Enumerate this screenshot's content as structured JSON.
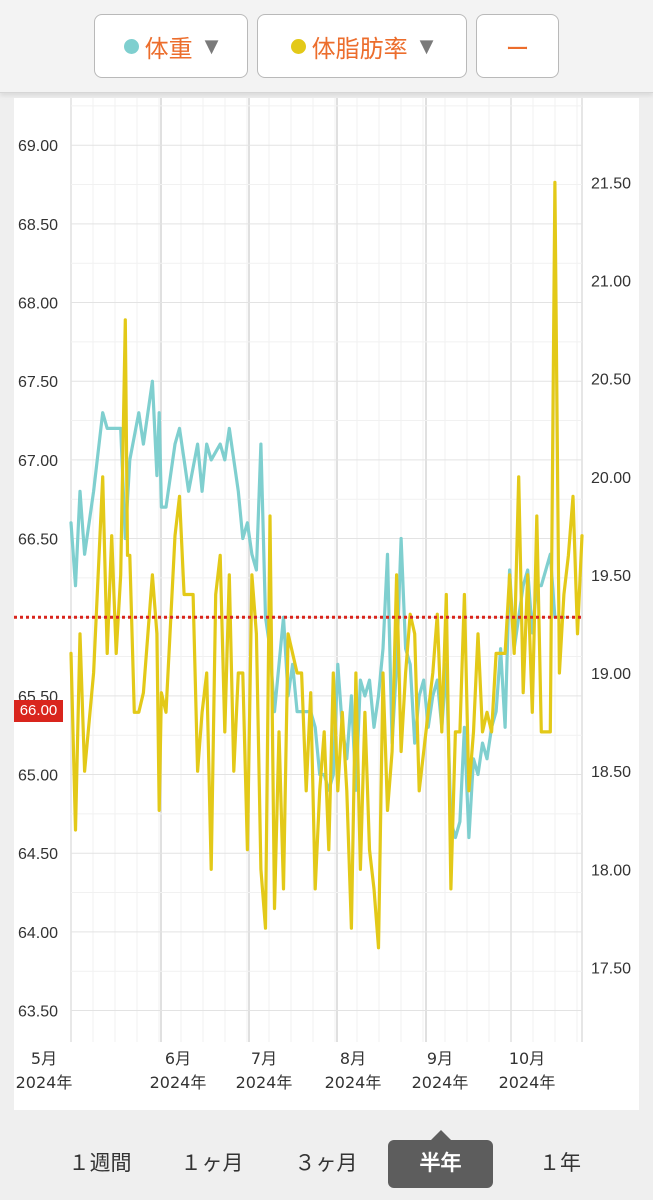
{
  "toolbar": {
    "series1_label": "体重",
    "series2_label": "体脂肪率",
    "series3_label": "ー",
    "dropdown_glyph": "▼"
  },
  "colors": {
    "weight": "#7fcfcf",
    "body_fat": "#e3c918",
    "reference_line": "#d9251d",
    "accent_text": "#ec6d2c"
  },
  "reference": {
    "label": "66.00",
    "value": 66.0
  },
  "periods": [
    "１週間",
    "１ヶ月",
    "３ヶ月",
    "半年",
    "１年"
  ],
  "active_period": "半年",
  "chart_data": {
    "type": "line",
    "x_axis": {
      "ticks": [
        {
          "line1": "5月",
          "line2": "2024年"
        },
        {
          "line1": "6月",
          "line2": "2024年"
        },
        {
          "line1": "7月",
          "line2": "2024年"
        },
        {
          "line1": "8月",
          "line2": "2024年"
        },
        {
          "line1": "9月",
          "line2": "2024年"
        },
        {
          "line1": "10月",
          "line2": "2024年"
        }
      ]
    },
    "y_left": {
      "range": [
        63.3,
        69.3
      ],
      "ticks": [
        "63.50",
        "64.00",
        "64.50",
        "65.00",
        "65.50",
        "66.00",
        "66.50",
        "67.00",
        "67.50",
        "68.00",
        "68.50",
        "69.00"
      ]
    },
    "y_right": {
      "range": [
        17.12,
        21.93
      ],
      "ticks": [
        "17.50",
        "18.00",
        "18.50",
        "19.00",
        "19.50",
        "20.00",
        "20.50",
        "21.00",
        "21.50"
      ]
    },
    "grid": true,
    "series": [
      {
        "name": "体重",
        "axis": "left",
        "points": [
          [
            0,
            66.6
          ],
          [
            1,
            66.2
          ],
          [
            2,
            66.8
          ],
          [
            3,
            66.4
          ],
          [
            5,
            66.8
          ],
          [
            7,
            67.3
          ],
          [
            8,
            67.2
          ],
          [
            9,
            67.2
          ],
          [
            10,
            67.2
          ],
          [
            11,
            67.2
          ],
          [
            12,
            66.5
          ],
          [
            13,
            67.0
          ],
          [
            15,
            67.3
          ],
          [
            16,
            67.1
          ],
          [
            18,
            67.5
          ],
          [
            19,
            66.9
          ],
          [
            19.5,
            67.3
          ],
          [
            20,
            66.7
          ],
          [
            21,
            66.7
          ],
          [
            23,
            67.1
          ],
          [
            24,
            67.2
          ],
          [
            25,
            67.0
          ],
          [
            26,
            66.8
          ],
          [
            28,
            67.1
          ],
          [
            29,
            66.8
          ],
          [
            30,
            67.1
          ],
          [
            31,
            67.0
          ],
          [
            33,
            67.1
          ],
          [
            34,
            67.0
          ],
          [
            35,
            67.2
          ],
          [
            37,
            66.8
          ],
          [
            38,
            66.5
          ],
          [
            39,
            66.6
          ],
          [
            40,
            66.4
          ],
          [
            41,
            66.3
          ],
          [
            42,
            67.1
          ],
          [
            43,
            66.0
          ],
          [
            44,
            65.8
          ],
          [
            45,
            65.4
          ],
          [
            46,
            65.7
          ],
          [
            47,
            66.0
          ],
          [
            48,
            65.5
          ],
          [
            49,
            65.7
          ],
          [
            50,
            65.4
          ],
          [
            51,
            65.4
          ],
          [
            52,
            65.4
          ],
          [
            53,
            65.4
          ],
          [
            54,
            65.3
          ],
          [
            55,
            65.0
          ],
          [
            56,
            65.0
          ],
          [
            57,
            64.9
          ],
          [
            58,
            65.0
          ],
          [
            59,
            65.7
          ],
          [
            60,
            65.3
          ],
          [
            61,
            65.1
          ],
          [
            62,
            65.5
          ],
          [
            63,
            64.9
          ],
          [
            64,
            65.6
          ],
          [
            65,
            65.5
          ],
          [
            66,
            65.6
          ],
          [
            67,
            65.3
          ],
          [
            68,
            65.5
          ],
          [
            69,
            65.8
          ],
          [
            70,
            66.4
          ],
          [
            71,
            65.2
          ],
          [
            72,
            65.7
          ],
          [
            73,
            66.5
          ],
          [
            74,
            65.8
          ],
          [
            75,
            65.7
          ],
          [
            76,
            65.2
          ],
          [
            77,
            65.5
          ],
          [
            78,
            65.6
          ],
          [
            79,
            65.3
          ],
          [
            80,
            65.5
          ],
          [
            81,
            65.6
          ],
          [
            82,
            65.3
          ],
          [
            83,
            65.7
          ],
          [
            84,
            64.7
          ],
          [
            85,
            64.6
          ],
          [
            86,
            64.7
          ],
          [
            87,
            65.3
          ],
          [
            88,
            64.6
          ],
          [
            89,
            65.1
          ],
          [
            90,
            65.0
          ],
          [
            91,
            65.2
          ],
          [
            92,
            65.1
          ],
          [
            93,
            65.3
          ],
          [
            94,
            65.4
          ],
          [
            95,
            65.8
          ],
          [
            96,
            65.3
          ],
          [
            97,
            66.3
          ],
          [
            98,
            65.8
          ],
          [
            99,
            66.0
          ],
          [
            100,
            66.2
          ],
          [
            101,
            66.3
          ],
          [
            102,
            65.9
          ],
          [
            103,
            66.2
          ],
          [
            104,
            66.2
          ],
          [
            105,
            66.3
          ],
          [
            106,
            66.4
          ],
          [
            107,
            66.0
          ],
          [
            108,
            66.0
          ],
          [
            109,
            66.0
          ]
        ]
      },
      {
        "name": "体脂肪率",
        "axis": "right",
        "points": [
          [
            0,
            19.1
          ],
          [
            1,
            18.2
          ],
          [
            2,
            19.2
          ],
          [
            3,
            18.5
          ],
          [
            5,
            19.0
          ],
          [
            7,
            20.0
          ],
          [
            8,
            19.1
          ],
          [
            9,
            19.7
          ],
          [
            10,
            19.1
          ],
          [
            11,
            19.5
          ],
          [
            12,
            20.8
          ],
          [
            12.5,
            19.6
          ],
          [
            13,
            19.6
          ],
          [
            14,
            18.8
          ],
          [
            15,
            18.8
          ],
          [
            16,
            18.9
          ],
          [
            18,
            19.5
          ],
          [
            19,
            19.2
          ],
          [
            19.5,
            18.3
          ],
          [
            20,
            18.9
          ],
          [
            21,
            18.8
          ],
          [
            23,
            19.7
          ],
          [
            24,
            19.9
          ],
          [
            25,
            19.4
          ],
          [
            26,
            19.4
          ],
          [
            27,
            19.4
          ],
          [
            28,
            18.5
          ],
          [
            29,
            18.8
          ],
          [
            30,
            19.0
          ],
          [
            31,
            18.0
          ],
          [
            32,
            19.4
          ],
          [
            33,
            19.6
          ],
          [
            34,
            18.7
          ],
          [
            35,
            19.5
          ],
          [
            36,
            18.5
          ],
          [
            37,
            19.0
          ],
          [
            38,
            19.0
          ],
          [
            39,
            18.1
          ],
          [
            40,
            19.5
          ],
          [
            41,
            19.2
          ],
          [
            42,
            18.0
          ],
          [
            43,
            17.7
          ],
          [
            44,
            19.8
          ],
          [
            45,
            17.8
          ],
          [
            46,
            18.7
          ],
          [
            47,
            17.9
          ],
          [
            48,
            19.2
          ],
          [
            49,
            19.1
          ],
          [
            50,
            19.0
          ],
          [
            51,
            19.0
          ],
          [
            52,
            18.4
          ],
          [
            53,
            18.9
          ],
          [
            54,
            17.9
          ],
          [
            55,
            18.4
          ],
          [
            56,
            18.7
          ],
          [
            57,
            18.1
          ],
          [
            58,
            19.0
          ],
          [
            59,
            18.4
          ],
          [
            60,
            18.8
          ],
          [
            61,
            18.4
          ],
          [
            62,
            17.7
          ],
          [
            63,
            19.0
          ],
          [
            64,
            18.0
          ],
          [
            65,
            18.8
          ],
          [
            66,
            18.1
          ],
          [
            67,
            17.9
          ],
          [
            68,
            17.6
          ],
          [
            69,
            19.0
          ],
          [
            70,
            18.3
          ],
          [
            71,
            18.6
          ],
          [
            72,
            19.5
          ],
          [
            73,
            18.6
          ],
          [
            74,
            19.0
          ],
          [
            75,
            19.3
          ],
          [
            76,
            19.2
          ],
          [
            77,
            18.4
          ],
          [
            78,
            18.6
          ],
          [
            79,
            18.8
          ],
          [
            80,
            19.0
          ],
          [
            81,
            19.3
          ],
          [
            82,
            18.7
          ],
          [
            83,
            19.4
          ],
          [
            84,
            17.9
          ],
          [
            85,
            18.7
          ],
          [
            86,
            18.7
          ],
          [
            87,
            19.4
          ],
          [
            88,
            18.4
          ],
          [
            89,
            18.7
          ],
          [
            90,
            19.2
          ],
          [
            91,
            18.7
          ],
          [
            92,
            18.8
          ],
          [
            93,
            18.7
          ],
          [
            94,
            19.1
          ],
          [
            95,
            19.1
          ],
          [
            96,
            19.1
          ],
          [
            97,
            19.5
          ],
          [
            98,
            19.1
          ],
          [
            99,
            20.0
          ],
          [
            100,
            18.9
          ],
          [
            101,
            19.5
          ],
          [
            102,
            18.8
          ],
          [
            103,
            19.8
          ],
          [
            104,
            18.7
          ],
          [
            105,
            18.7
          ],
          [
            106,
            18.7
          ],
          [
            107,
            21.5
          ],
          [
            108,
            19.0
          ],
          [
            109,
            19.4
          ],
          [
            110,
            19.6
          ],
          [
            111,
            19.9
          ],
          [
            112,
            19.2
          ],
          [
            113,
            19.7
          ]
        ]
      }
    ]
  }
}
